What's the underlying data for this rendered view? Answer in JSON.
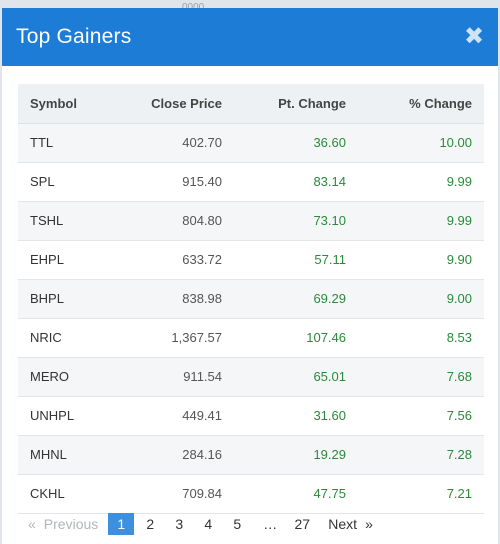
{
  "backdrop": {
    "hint": "0000"
  },
  "modal": {
    "title": "Top Gainers",
    "close_glyph": "✖"
  },
  "table": {
    "headers": {
      "symbol": "Symbol",
      "close_price": "Close Price",
      "pt_change": "Pt. Change",
      "pct_change": "% Change"
    },
    "rows": [
      {
        "symbol": "TTL",
        "close": "402.70",
        "pt": "36.60",
        "pct": "10.00"
      },
      {
        "symbol": "SPL",
        "close": "915.40",
        "pt": "83.14",
        "pct": "9.99"
      },
      {
        "symbol": "TSHL",
        "close": "804.80",
        "pt": "73.10",
        "pct": "9.99"
      },
      {
        "symbol": "EHPL",
        "close": "633.72",
        "pt": "57.11",
        "pct": "9.90"
      },
      {
        "symbol": "BHPL",
        "close": "838.98",
        "pt": "69.29",
        "pct": "9.00"
      },
      {
        "symbol": "NRIC",
        "close": "1,367.57",
        "pt": "107.46",
        "pct": "8.53"
      },
      {
        "symbol": "MERO",
        "close": "911.54",
        "pt": "65.01",
        "pct": "7.68"
      },
      {
        "symbol": "UNHPL",
        "close": "449.41",
        "pt": "31.60",
        "pct": "7.56"
      },
      {
        "symbol": "MHNL",
        "close": "284.16",
        "pt": "19.29",
        "pct": "7.28"
      },
      {
        "symbol": "CKHL",
        "close": "709.84",
        "pt": "47.75",
        "pct": "7.21"
      }
    ]
  },
  "pagination": {
    "prev_arrow": "«",
    "prev_label": "Previous",
    "pages": [
      "1",
      "2",
      "3",
      "4",
      "5"
    ],
    "ellipsis": "…",
    "last_page": "27",
    "next_label": "Next",
    "next_arrow": "»",
    "current": "1"
  },
  "colors": {
    "header_bg": "#1d7cd6",
    "positive": "#2a8a3a",
    "active_page": "#3d8fe0"
  }
}
